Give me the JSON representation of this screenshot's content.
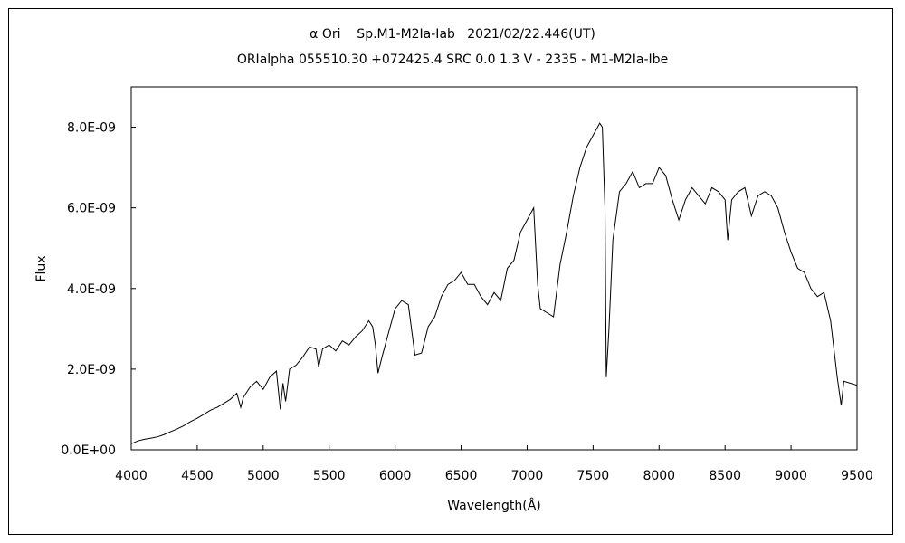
{
  "header": {
    "title_line1": "α Ori    Sp.M1-M2Ia-Iab   2021/02/22.446(UT)",
    "title_line2": "ORIalpha 055510.30 +072425.4 SRC 0.0 1.3 V - 2335 - M1-M2Ia-Ibe"
  },
  "chart_data": {
    "type": "line",
    "xlabel": "Wavelength(Å)",
    "ylabel": "Flux",
    "xlim": [
      4000,
      9500
    ],
    "ylim": [
      0,
      9e-09
    ],
    "x_ticks": [
      "4000",
      "4500",
      "5000",
      "5500",
      "6000",
      "6500",
      "7000",
      "7500",
      "8000",
      "8500",
      "9000",
      "9500"
    ],
    "y_ticks": [
      "0.0E+00",
      "2.0E-09",
      "4.0E-09",
      "6.0E-09",
      "8.0E-09"
    ],
    "grid": false,
    "line_color": "#000000",
    "series": [
      {
        "x": [
          4000,
          4050,
          4100,
          4150,
          4200,
          4250,
          4300,
          4350,
          4400,
          4450,
          4500,
          4550,
          4600,
          4650,
          4700,
          4750,
          4800,
          4830,
          4850,
          4900,
          4950,
          5000,
          5050,
          5100,
          5130,
          5150,
          5170,
          5200,
          5250,
          5300,
          5350,
          5400,
          5420,
          5450,
          5500,
          5550,
          5600,
          5650,
          5700,
          5750,
          5800,
          5830,
          5850,
          5870,
          5900,
          5950,
          6000,
          6050,
          6100,
          6150,
          6200,
          6250,
          6300,
          6350,
          6400,
          6450,
          6500,
          6550,
          6600,
          6650,
          6700,
          6750,
          6800,
          6850,
          6900,
          6950,
          7000,
          7050,
          7080,
          7100,
          7150,
          7200,
          7250,
          7300,
          7350,
          7400,
          7450,
          7500,
          7550,
          7570,
          7590,
          7600,
          7620,
          7650,
          7700,
          7750,
          7800,
          7850,
          7900,
          7950,
          8000,
          8050,
          8100,
          8150,
          8200,
          8250,
          8300,
          8350,
          8400,
          8450,
          8500,
          8520,
          8550,
          8600,
          8650,
          8700,
          8750,
          8800,
          8850,
          8900,
          8950,
          9000,
          9050,
          9100,
          9150,
          9200,
          9250,
          9300,
          9350,
          9380,
          9400,
          9450,
          9500
        ],
        "y": [
          1.5e-10,
          2.2e-10,
          2.6e-10,
          2.9e-10,
          3.2e-10,
          3.8e-10,
          4.5e-10,
          5.2e-10,
          6e-10,
          7e-10,
          7.8e-10,
          8.8e-10,
          9.8e-10,
          1.05e-09,
          1.15e-09,
          1.25e-09,
          1.4e-09,
          1.05e-09,
          1.3e-09,
          1.55e-09,
          1.7e-09,
          1.5e-09,
          1.8e-09,
          1.95e-09,
          1e-09,
          1.65e-09,
          1.2e-09,
          2e-09,
          2.1e-09,
          2.3e-09,
          2.55e-09,
          2.5e-09,
          2.05e-09,
          2.5e-09,
          2.6e-09,
          2.45e-09,
          2.7e-09,
          2.6e-09,
          2.8e-09,
          2.95e-09,
          3.2e-09,
          3.05e-09,
          2.6e-09,
          1.9e-09,
          2.3e-09,
          2.9e-09,
          3.5e-09,
          3.7e-09,
          3.6e-09,
          2.35e-09,
          2.4e-09,
          3.05e-09,
          3.3e-09,
          3.8e-09,
          4.1e-09,
          4.2e-09,
          4.4e-09,
          4.1e-09,
          4.1e-09,
          3.8e-09,
          3.6e-09,
          3.9e-09,
          3.7e-09,
          4.5e-09,
          4.7e-09,
          5.4e-09,
          5.7e-09,
          6e-09,
          4.1e-09,
          3.5e-09,
          3.4e-09,
          3.3e-09,
          4.6e-09,
          5.4e-09,
          6.3e-09,
          7e-09,
          7.5e-09,
          7.8e-09,
          8.1e-09,
          8e-09,
          6e-09,
          1.8e-09,
          3e-09,
          5.2e-09,
          6.4e-09,
          6.6e-09,
          6.9e-09,
          6.5e-09,
          6.6e-09,
          6.6e-09,
          7e-09,
          6.8e-09,
          6.2e-09,
          5.7e-09,
          6.2e-09,
          6.5e-09,
          6.3e-09,
          6.1e-09,
          6.5e-09,
          6.4e-09,
          6.2e-09,
          5.2e-09,
          6.2e-09,
          6.4e-09,
          6.5e-09,
          5.8e-09,
          6.3e-09,
          6.4e-09,
          6.3e-09,
          6e-09,
          5.4e-09,
          4.9e-09,
          4.5e-09,
          4.4e-09,
          4e-09,
          3.8e-09,
          3.9e-09,
          3.2e-09,
          1.8e-09,
          1.1e-09,
          1.7e-09,
          1.65e-09,
          1.6e-09
        ]
      }
    ]
  }
}
